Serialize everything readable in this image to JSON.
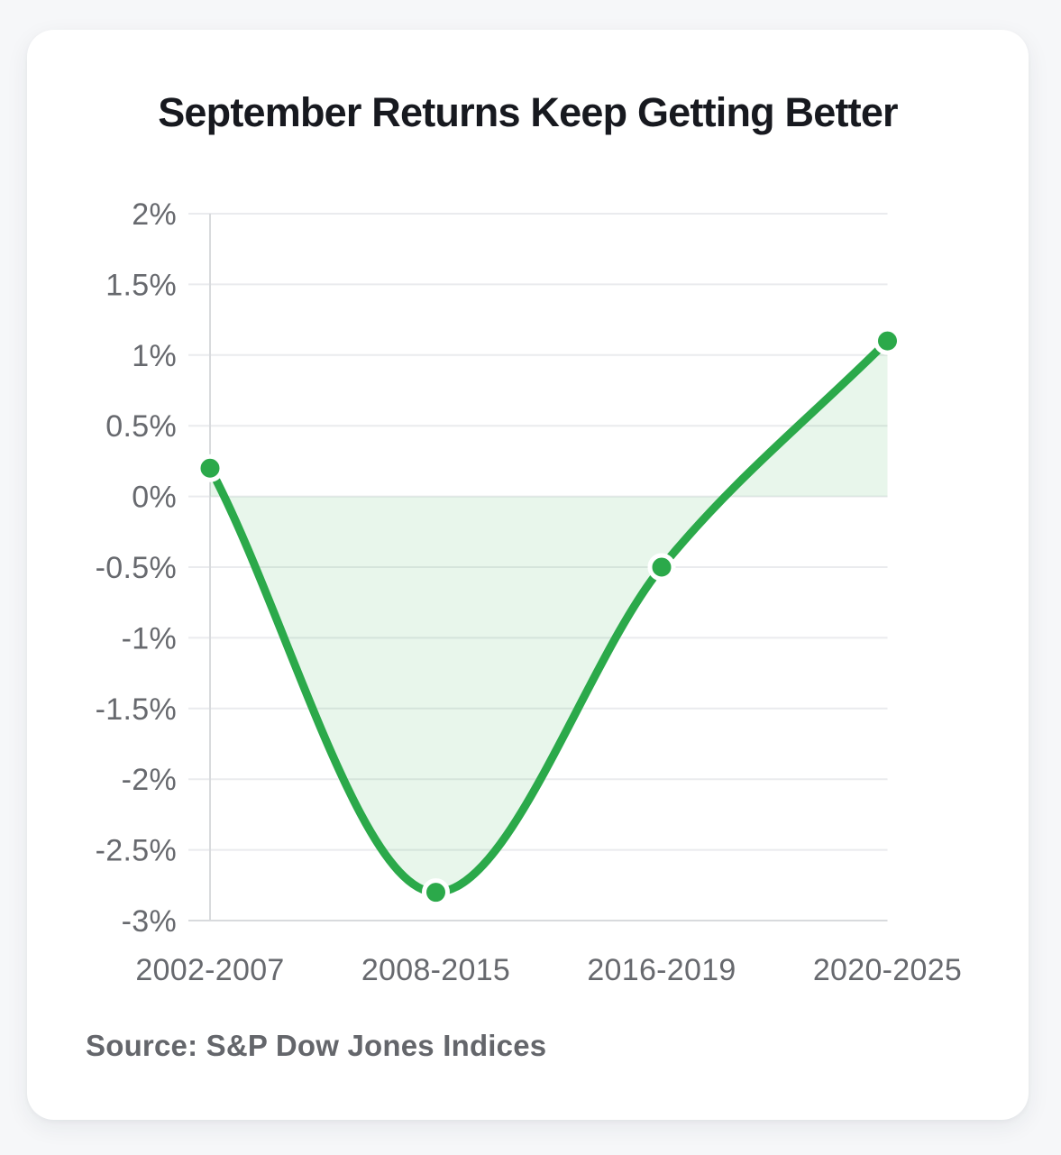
{
  "page": {
    "background_color": "#f6f7f9"
  },
  "card": {
    "background_color": "#ffffff"
  },
  "chart_data": {
    "type": "area",
    "title": "September Returns Keep Getting Better",
    "categories": [
      "2002-2007",
      "2008-2015",
      "2016-2019",
      "2020-2025"
    ],
    "values": [
      0.2,
      -2.8,
      -0.5,
      1.1
    ],
    "unit": "%",
    "ylim": [
      -3,
      2
    ],
    "ytick_step": 0.5,
    "ytick_labels": [
      "2%",
      "1.5%",
      "1%",
      "0.5%",
      "0%",
      "-0.5%",
      "-1%",
      "-1.5%",
      "-2%",
      "-2.5%",
      "-3%"
    ],
    "baseline": 0,
    "grid": true,
    "legend": false,
    "curve": "monotone",
    "colors": {
      "line": "#2ba94a",
      "fill": "rgba(43,169,74,0.11)",
      "point_fill": "#2ba94a",
      "point_border": "#ffffff",
      "grid": "#eaebee",
      "axis_line": "#d8dadd",
      "axis_text": "#67696e"
    }
  },
  "source_note": "Source: S&P Dow Jones Indices"
}
